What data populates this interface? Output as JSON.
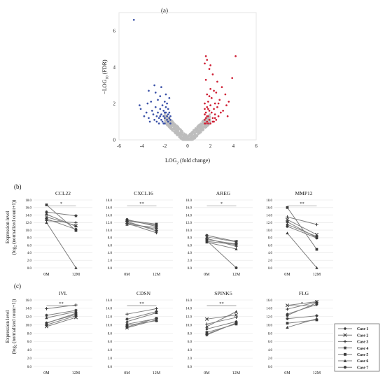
{
  "panel_labels": {
    "a": "(a)",
    "b": "(b)",
    "c": "(c)"
  },
  "colors": {
    "down": "#3b52a8",
    "up": "#cf2035",
    "ns": "#bdbdbd",
    "line": "#7f7f7f",
    "marker": "#3a3a3a",
    "grid": "#e4e4e4"
  },
  "volcano": {
    "xlabel_main": "LOG",
    "xlabel_sub": "2",
    "xlabel_rest": " (fold change)",
    "ylabel_main": "−LOG",
    "ylabel_sub": "10",
    "ylabel_rest": " (FDR)"
  },
  "expression_axis": {
    "line1": "Expression level",
    "line2": "(log",
    "line2_sub": "2",
    "line2_rest": " (normalized count+1))"
  },
  "legend": {
    "items": [
      {
        "label": "Case 1",
        "marker": "diamond"
      },
      {
        "label": "Case 2",
        "marker": "x"
      },
      {
        "label": "Case 3",
        "marker": "plus"
      },
      {
        "label": "Case 4",
        "marker": "star"
      },
      {
        "label": "Case 5",
        "marker": "square"
      },
      {
        "label": "Case 6",
        "marker": "triangle"
      },
      {
        "label": "Case 7",
        "marker": "circle"
      }
    ]
  },
  "chart_data": [
    {
      "id": "a",
      "type": "scatter",
      "xlim": [
        -6,
        6
      ],
      "ylim": [
        0,
        7
      ],
      "xticks": [
        -6,
        -4,
        -2,
        0,
        2,
        4,
        6
      ],
      "yticks": [
        0,
        2,
        4,
        6
      ],
      "series": [
        {
          "color": "down",
          "points": [
            [
              -4.7,
              6.6
            ],
            [
              -4.2,
              1.9
            ],
            [
              -4.1,
              1.7
            ],
            [
              -3.8,
              1.3
            ],
            [
              -3.6,
              1.5
            ],
            [
              -3.5,
              2.0
            ],
            [
              -3.4,
              1.2
            ],
            [
              -3.3,
              1.0
            ],
            [
              -3.2,
              2.1
            ],
            [
              -3.1,
              1.6
            ],
            [
              -3.0,
              1.4
            ],
            [
              -2.9,
              1.1
            ],
            [
              -2.8,
              2.6
            ],
            [
              -2.8,
              1.8
            ],
            [
              -2.7,
              1.3
            ],
            [
              -2.7,
              1.0
            ],
            [
              -2.6,
              1.5
            ],
            [
              -2.6,
              2.2
            ],
            [
              -2.5,
              1.2
            ],
            [
              -2.5,
              0.9
            ],
            [
              -2.4,
              1.7
            ],
            [
              -2.4,
              2.4
            ],
            [
              -2.3,
              1.1
            ],
            [
              -2.3,
              1.4
            ],
            [
              -2.3,
              2.9
            ],
            [
              -2.2,
              1.9
            ],
            [
              -2.2,
              1.0
            ],
            [
              -2.1,
              1.3
            ],
            [
              -2.1,
              1.6
            ],
            [
              -2.0,
              2.1
            ],
            [
              -2.0,
              1.2
            ],
            [
              -2.0,
              0.9
            ],
            [
              -1.9,
              1.5
            ],
            [
              -1.9,
              1.8
            ],
            [
              -1.9,
              2.5
            ],
            [
              -1.8,
              1.1
            ],
            [
              -1.8,
              1.3
            ],
            [
              -1.8,
              2.0
            ],
            [
              -1.7,
              1.4
            ],
            [
              -1.7,
              1.0
            ],
            [
              -1.7,
              1.7
            ],
            [
              -1.6,
              1.2
            ],
            [
              -1.6,
              1.5
            ],
            [
              -1.6,
              2.3
            ],
            [
              -1.5,
              1.1
            ],
            [
              -1.5,
              1.3
            ],
            [
              -1.5,
              0.9
            ],
            [
              -2.9,
              3.0
            ],
            [
              -3.4,
              2.7
            ],
            [
              -2.1,
              0.9
            ],
            [
              -2.4,
              1.3
            ],
            [
              -2.0,
              1.5
            ]
          ]
        },
        {
          "color": "up",
          "points": [
            [
              4.2,
              4.6
            ],
            [
              3.9,
              3.4
            ],
            [
              3.6,
              2.1
            ],
            [
              3.4,
              1.9
            ],
            [
              3.3,
              2.5
            ],
            [
              3.1,
              1.6
            ],
            [
              3.0,
              2.9
            ],
            [
              2.9,
              1.5
            ],
            [
              2.8,
              2.2
            ],
            [
              2.7,
              1.3
            ],
            [
              2.6,
              3.2
            ],
            [
              2.6,
              1.8
            ],
            [
              2.5,
              1.1
            ],
            [
              2.5,
              2.6
            ],
            [
              2.4,
              1.4
            ],
            [
              2.4,
              2.0
            ],
            [
              2.3,
              1.0
            ],
            [
              2.3,
              1.7
            ],
            [
              2.2,
              3.6
            ],
            [
              2.2,
              1.2
            ],
            [
              2.1,
              2.3
            ],
            [
              2.1,
              1.5
            ],
            [
              2.0,
              0.9
            ],
            [
              2.0,
              1.9
            ],
            [
              2.0,
              2.8
            ],
            [
              1.9,
              1.1
            ],
            [
              1.9,
              1.6
            ],
            [
              1.9,
              3.9
            ],
            [
              1.8,
              1.3
            ],
            [
              1.8,
              2.1
            ],
            [
              1.8,
              0.9
            ],
            [
              1.7,
              1.0
            ],
            [
              1.7,
              1.8
            ],
            [
              1.7,
              2.5
            ],
            [
              1.6,
              1.2
            ],
            [
              1.6,
              1.5
            ],
            [
              1.6,
              3.3
            ],
            [
              1.5,
              0.9
            ],
            [
              1.5,
              1.1
            ],
            [
              1.5,
              2.0
            ],
            [
              1.5,
              4.2
            ],
            [
              1.6,
              4.6
            ],
            [
              1.7,
              4.4
            ],
            [
              2.0,
              4.1
            ],
            [
              1.5,
              1.4
            ],
            [
              1.6,
              0.9
            ],
            [
              1.7,
              1.3
            ],
            [
              2.3,
              2.7
            ],
            [
              2.7,
              2.0
            ],
            [
              1.8,
              1.7
            ],
            [
              1.5,
              1.7
            ],
            [
              1.9,
              2.4
            ],
            [
              2.4,
              1.2
            ],
            [
              3.5,
              1.3
            ],
            [
              2.2,
              1.0
            ]
          ]
        }
      ]
    },
    {
      "id": "b",
      "type": "line",
      "categories": [
        "0M",
        "12M"
      ],
      "ylim": [
        0,
        18
      ],
      "yticks": [
        0,
        2,
        4,
        6,
        8,
        10,
        12,
        14,
        16,
        18
      ],
      "ytick_labels": [
        "0.0",
        "2.0",
        "4.0",
        "6.0",
        "8.0",
        "10.0",
        "12.0",
        "14.0",
        "16.0",
        "18.0"
      ],
      "panels": [
        {
          "title": "CCL22",
          "sig": "*",
          "series": [
            {
              "case": "Case 1",
              "values": [
                14.2,
                11.0
              ]
            },
            {
              "case": "Case 2",
              "values": [
                13.5,
                11.2
              ]
            },
            {
              "case": "Case 3",
              "values": [
                12.5,
                12.0
              ]
            },
            {
              "case": "Case 4",
              "values": [
                14.8,
                13.8
              ]
            },
            {
              "case": "Case 5",
              "values": [
                16.7,
                9.9
              ]
            },
            {
              "case": "Case 6",
              "values": [
                12.0,
                0.0
              ]
            },
            {
              "case": "Case 7",
              "values": [
                13.0,
                10.2
              ]
            }
          ]
        },
        {
          "title": "CXCL16",
          "sig": "**",
          "series": [
            {
              "case": "Case 1",
              "values": [
                12.5,
                11.3
              ]
            },
            {
              "case": "Case 2",
              "values": [
                12.0,
                10.2
              ]
            },
            {
              "case": "Case 3",
              "values": [
                11.8,
                9.3
              ]
            },
            {
              "case": "Case 4",
              "values": [
                12.3,
                9.8
              ]
            },
            {
              "case": "Case 5",
              "values": [
                12.6,
                11.6
              ]
            },
            {
              "case": "Case 6",
              "values": [
                11.5,
                10.7
              ]
            },
            {
              "case": "Case 7",
              "values": [
                12.8,
                11.0
              ]
            }
          ]
        },
        {
          "title": "AREG",
          "sig": "*",
          "series": [
            {
              "case": "Case 1",
              "values": [
                7.5,
                6.3
              ]
            },
            {
              "case": "Case 2",
              "values": [
                8.2,
                6.9
              ]
            },
            {
              "case": "Case 3",
              "values": [
                7.8,
                5.7
              ]
            },
            {
              "case": "Case 4",
              "values": [
                8.6,
                7.0
              ]
            },
            {
              "case": "Case 5",
              "values": [
                7.0,
                6.2
              ]
            },
            {
              "case": "Case 6",
              "values": [
                6.8,
                5.0
              ]
            },
            {
              "case": "Case 7",
              "values": [
                7.2,
                0.0
              ]
            }
          ]
        },
        {
          "title": "MMP12",
          "sig": "**",
          "series": [
            {
              "case": "Case 1",
              "values": [
                11.5,
                8.3
              ]
            },
            {
              "case": "Case 2",
              "values": [
                12.8,
                8.8
              ]
            },
            {
              "case": "Case 3",
              "values": [
                13.5,
                11.5
              ]
            },
            {
              "case": "Case 4",
              "values": [
                12.2,
                8.0
              ]
            },
            {
              "case": "Case 5",
              "values": [
                16.0,
                4.9
              ]
            },
            {
              "case": "Case 6",
              "values": [
                9.2,
                0.0
              ]
            },
            {
              "case": "Case 7",
              "values": [
                11.0,
                7.9
              ]
            }
          ]
        }
      ]
    },
    {
      "id": "c",
      "type": "line",
      "categories": [
        "0M",
        "12M"
      ],
      "ylim": [
        0,
        16
      ],
      "yticks": [
        0,
        2,
        4,
        6,
        8,
        10,
        12,
        14,
        16
      ],
      "ytick_labels": [
        "0.0",
        "2.0",
        "4.0",
        "6.0",
        "8.0",
        "10.0",
        "12.0",
        "14.0",
        "16.0"
      ],
      "panels": [
        {
          "title": "IVL",
          "sig": "**",
          "series": [
            {
              "case": "Case 1",
              "values": [
                10.5,
                12.5
              ]
            },
            {
              "case": "Case 2",
              "values": [
                9.6,
                11.8
              ]
            },
            {
              "case": "Case 3",
              "values": [
                13.9,
                14.8
              ]
            },
            {
              "case": "Case 4",
              "values": [
                12.3,
                13.5
              ]
            },
            {
              "case": "Case 5",
              "values": [
                10.4,
                12.8
              ]
            },
            {
              "case": "Case 6",
              "values": [
                11.7,
                13.2
              ]
            },
            {
              "case": "Case 7",
              "values": [
                10.0,
                12.2
              ]
            }
          ]
        },
        {
          "title": "CDSN",
          "sig": "**",
          "series": [
            {
              "case": "Case 1",
              "values": [
                10.2,
                11.5
              ]
            },
            {
              "case": "Case 2",
              "values": [
                9.3,
                11.2
              ]
            },
            {
              "case": "Case 3",
              "values": [
                12.6,
                13.9
              ]
            },
            {
              "case": "Case 4",
              "values": [
                11.4,
                13.2
              ]
            },
            {
              "case": "Case 5",
              "values": [
                9.5,
                11.6
              ]
            },
            {
              "case": "Case 6",
              "values": [
                10.8,
                12.9
              ]
            },
            {
              "case": "Case 7",
              "values": [
                9.9,
                11.0
              ]
            }
          ]
        },
        {
          "title": "SPINK5",
          "sig": "**",
          "series": [
            {
              "case": "Case 1",
              "values": [
                9.0,
                10.8
              ]
            },
            {
              "case": "Case 2",
              "values": [
                11.4,
                12.4
              ]
            },
            {
              "case": "Case 3",
              "values": [
                10.2,
                11.8
              ]
            },
            {
              "case": "Case 4",
              "values": [
                7.6,
                10.5
              ]
            },
            {
              "case": "Case 5",
              "values": [
                8.2,
                10.2
              ]
            },
            {
              "case": "Case 6",
              "values": [
                9.6,
                13.2
              ]
            },
            {
              "case": "Case 7",
              "values": [
                7.8,
                10.4
              ]
            }
          ]
        },
        {
          "title": "FLG",
          "sig": "*",
          "series": [
            {
              "case": "Case 1",
              "values": [
                12.6,
                14.9
              ]
            },
            {
              "case": "Case 2",
              "values": [
                14.7,
                15.6
              ]
            },
            {
              "case": "Case 3",
              "values": [
                13.8,
                15.5
              ]
            },
            {
              "case": "Case 4",
              "values": [
                11.5,
                12.2
              ]
            },
            {
              "case": "Case 5",
              "values": [
                10.4,
                11.2
              ]
            },
            {
              "case": "Case 6",
              "values": [
                9.4,
                11.5
              ]
            },
            {
              "case": "Case 7",
              "values": [
                12.3,
                15.3
              ]
            }
          ]
        }
      ]
    }
  ]
}
